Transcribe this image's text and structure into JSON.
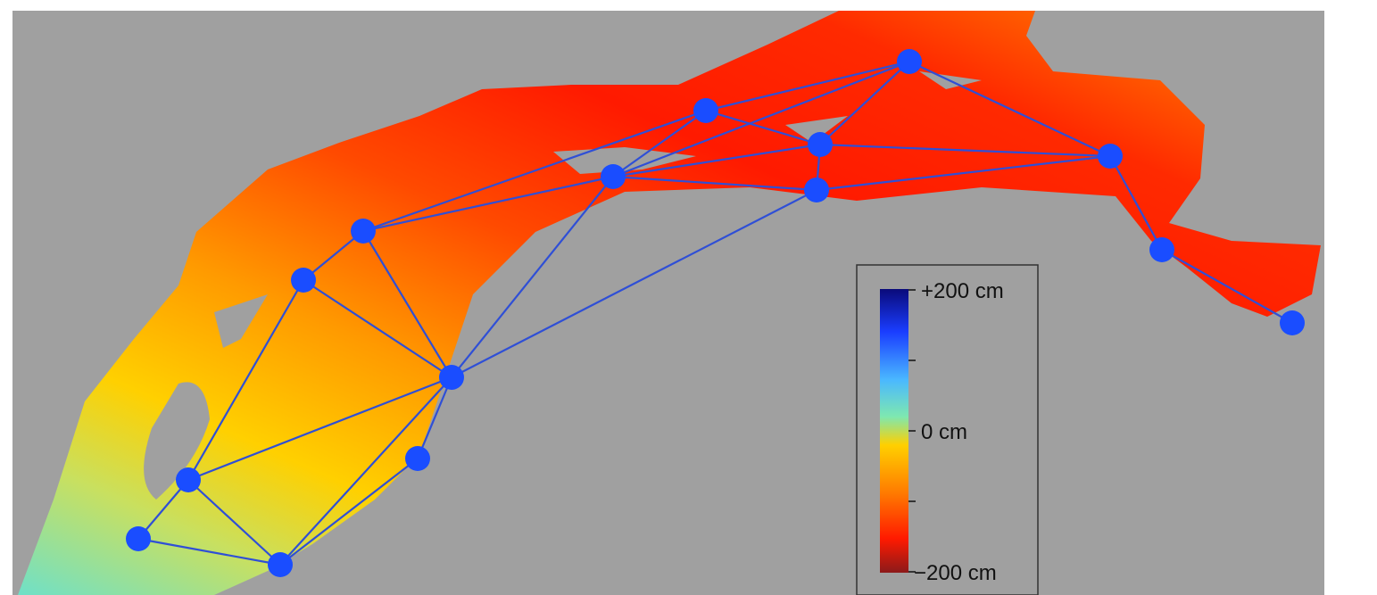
{
  "map": {
    "background_color": "#a0a0a0",
    "network_line_color": "#2f4fd6",
    "node_color": "#1a4dff",
    "nodes": [
      {
        "id": "n1"
      },
      {
        "id": "n2"
      },
      {
        "id": "n3"
      },
      {
        "id": "n4"
      },
      {
        "id": "n5"
      },
      {
        "id": "n6"
      },
      {
        "id": "n7"
      },
      {
        "id": "n8"
      },
      {
        "id": "n9"
      },
      {
        "id": "n10"
      },
      {
        "id": "n11"
      },
      {
        "id": "n12"
      },
      {
        "id": "n13"
      },
      {
        "id": "n14"
      },
      {
        "id": "n15"
      },
      {
        "id": "n16"
      },
      {
        "id": "n17"
      },
      {
        "id": "n18"
      }
    ]
  },
  "legend": {
    "top_label": "+200 cm",
    "mid_label": "0 cm",
    "bottom_label": "−200 cm",
    "colors": [
      "#8b1a1a",
      "#ff1a00",
      "#ff7a00",
      "#ffd000",
      "#5fe0c0",
      "#4aa8ff",
      "#1a3dff",
      "#0a0a7a"
    ]
  }
}
